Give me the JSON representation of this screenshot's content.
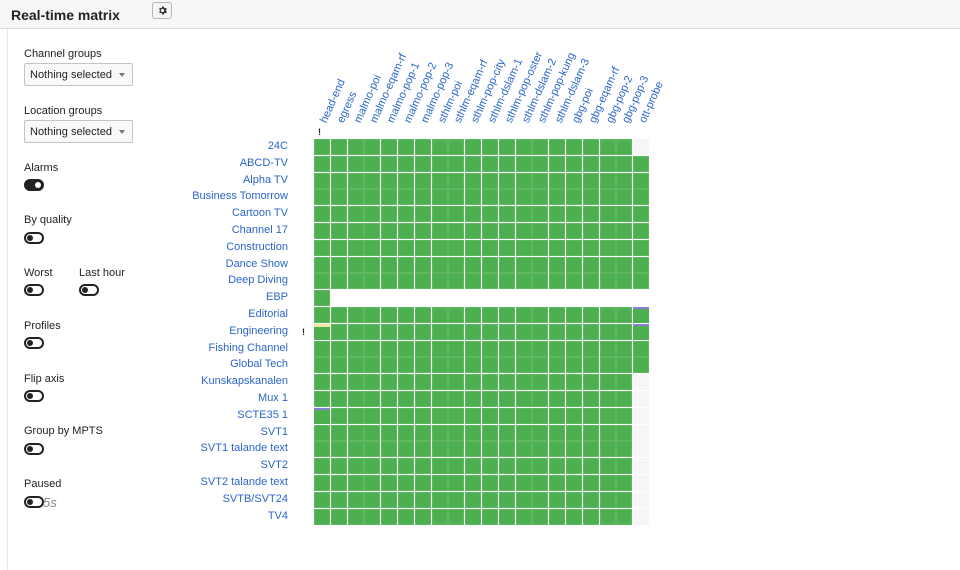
{
  "header": {
    "title": "Real-time matrix",
    "settings_icon": "gear-icon"
  },
  "sidebar": {
    "channel_groups": {
      "label": "Channel groups",
      "value": "Nothing selected"
    },
    "location_groups": {
      "label": "Location groups",
      "value": "Nothing selected"
    },
    "toggles": {
      "alarms": {
        "label": "Alarms",
        "on": true
      },
      "by_quality": {
        "label": "By quality",
        "on": false
      },
      "worst": {
        "label": "Worst",
        "on": false
      },
      "last_hour": {
        "label": "Last hour",
        "on": false
      },
      "profiles": {
        "label": "Profiles",
        "on": false
      },
      "flip_axis": {
        "label": "Flip axis",
        "on": false
      },
      "group_by_mpts": {
        "label": "Group by MPTS",
        "on": false
      },
      "paused": {
        "label": "Paused",
        "on": false,
        "interval": "5s"
      }
    }
  },
  "matrix": {
    "columns": [
      "head-end",
      "egress",
      "malmo-poi",
      "malmo-eqam-rf",
      "malmo-pop-1",
      "malmo-pop-2",
      "malmo-pop-3",
      "sthlm-poi",
      "sthlm-eqam-rf",
      "sthlm-pop-city",
      "sthlm-dslam-1",
      "sthlm-pop-oster",
      "sthlm-dslam-2",
      "sthlm-pop-kung",
      "sthlm-dslam-3",
      "gbg-poi",
      "gbg-eqam-rf",
      "gbg-pop-2",
      "gbg-pop-3",
      "ott-probe"
    ],
    "rows": [
      "24C",
      "ABCD-TV",
      "Alpha TV",
      "Business Tomorrow",
      "Cartoon TV",
      "Channel 17",
      "Construction",
      "Dance Show",
      "Deep Diving",
      "EBP",
      "Editorial",
      "Engineering",
      "Fishing Channel",
      "Global Tech",
      "Kunskapskanalen",
      "Mux 1",
      "SCTE35 1",
      "SVT1",
      "SVT1 talande text",
      "SVT2",
      "SVT2 talande text",
      "SVTB/SVT24",
      "TV4"
    ],
    "alarm_column": "head-end",
    "alarm_row": "Engineering",
    "alarm_marker": "!",
    "status_colors": {
      "ok": "#4caf50",
      "no_data": "#f6f6f6",
      "warning": "#f5e79e",
      "info": "#8a7fd6"
    },
    "cells": [
      "GGGGGGGGGGGGGGGGGGGE",
      "GGGGGGGGGGGGGGGGGGGG",
      "GGGGGGGGGGGGGGGGGGGG",
      "GGGGGGGGGGGGGGGGGGGG",
      "GGGGGGGGGGGGGGGGGGGG",
      "GGGGGGGGGGGGGGGGGGGG",
      "GGGGGGGGGGGGGGGGGGGG",
      "GGGGGGGGGGGGGGGGGGGG",
      "GGGGGGGGGGGGGGGGGGGG",
      "GNNNNNNNNNNNNNNNNNNN",
      "GGGGGGGGGGGGGGGGGGGB",
      "YGGGGGGGGGGGGGGGGGGB",
      "GGGGGGGGGGGGGGGGGGGG",
      "GGGGGGGGGGGGGGGGGGGG",
      "GGGGGGGGGGGGGGGGGGGE",
      "GGGGGGGGGGGGGGGGGGGE",
      "BGGGGGGGGGGGGGGGGGGE",
      "GGGGGGGGGGGGGGGGGGGE",
      "GGGGGGGGGGGGGGGGGGGE",
      "GGGGGGGGGGGGGGGGGGGE",
      "GGGGGGGGGGGGGGGGGGGE",
      "GGGGGGGGGGGGGGGGGGGE",
      "GGGGGGGGGGGGGGGGGGGE"
    ]
  }
}
